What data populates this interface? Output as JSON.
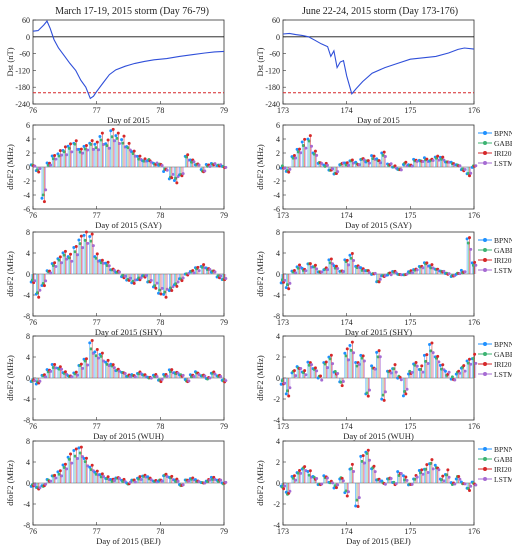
{
  "figure": {
    "col_titles": [
      "March 17-19, 2015 storm (Day 76-79)",
      "June 22-24, 2015 storm (Day 173-176)"
    ],
    "dst_ylabel": "Dst (nT)",
    "dfof2_ylabel": "dfoF2 (MHz)",
    "legend": [
      "BPNN",
      "GABP",
      "IRI2016",
      "LSTM"
    ],
    "colors": {
      "BPNN": "#1e90ff",
      "GABP": "#3cb371",
      "IRI2016": "#d62728",
      "LSTM": "#a66bd3",
      "dst_line": "#2f4fd9",
      "dst_threshold": "#d62728"
    }
  },
  "chart_data": [
    {
      "id": "dst_march",
      "type": "line",
      "title": "March 17-19, 2015 storm (Day 76-79)",
      "xlabel": "Day of 2015",
      "ylabel": "Dst (nT)",
      "xlim": [
        76,
        79
      ],
      "ylim": [
        -240,
        60
      ],
      "xticks": [
        76,
        77,
        78,
        79
      ],
      "yticks": [
        -240,
        -180,
        -120,
        -60,
        0,
        60
      ],
      "threshold": -200,
      "series": [
        {
          "values": [
            [
              76.0,
              20
            ],
            [
              76.08,
              22
            ],
            [
              76.17,
              42
            ],
            [
              76.22,
              56
            ],
            [
              76.27,
              30
            ],
            [
              76.33,
              -10
            ],
            [
              76.4,
              -40
            ],
            [
              76.5,
              -70
            ],
            [
              76.58,
              -95
            ],
            [
              76.67,
              -120
            ],
            [
              76.75,
              -155
            ],
            [
              76.83,
              -180
            ],
            [
              76.9,
              -220
            ],
            [
              76.95,
              -212
            ],
            [
              77.0,
              -195
            ],
            [
              77.1,
              -165
            ],
            [
              77.2,
              -135
            ],
            [
              77.3,
              -118
            ],
            [
              77.45,
              -105
            ],
            [
              77.6,
              -95
            ],
            [
              77.75,
              -88
            ],
            [
              77.9,
              -82
            ],
            [
              78.1,
              -78
            ],
            [
              78.3,
              -70
            ],
            [
              78.5,
              -64
            ],
            [
              78.7,
              -58
            ],
            [
              78.85,
              -54
            ],
            [
              79.0,
              -52
            ]
          ]
        }
      ]
    },
    {
      "id": "dst_june",
      "type": "line",
      "title": "June 22-24, 2015 storm (Day 173-176)",
      "xlabel": "Day of 2015",
      "ylabel": "Dst (nT)",
      "xlim": [
        173,
        176
      ],
      "ylim": [
        -240,
        60
      ],
      "xticks": [
        173,
        174,
        175,
        176
      ],
      "yticks": [
        -240,
        -180,
        -120,
        -60,
        0,
        60
      ],
      "threshold": -200,
      "series": [
        {
          "values": [
            [
              173.0,
              10
            ],
            [
              173.1,
              12
            ],
            [
              173.2,
              8
            ],
            [
              173.3,
              5
            ],
            [
              173.4,
              0
            ],
            [
              173.5,
              -12
            ],
            [
              173.6,
              -25
            ],
            [
              173.7,
              -35
            ],
            [
              173.75,
              -70
            ],
            [
              173.8,
              -50
            ],
            [
              173.85,
              -110
            ],
            [
              173.9,
              -90
            ],
            [
              173.95,
              -85
            ],
            [
              174.0,
              -140
            ],
            [
              174.05,
              -180
            ],
            [
              174.08,
              -204
            ],
            [
              174.15,
              -185
            ],
            [
              174.25,
              -160
            ],
            [
              174.4,
              -130
            ],
            [
              174.6,
              -110
            ],
            [
              174.8,
              -95
            ],
            [
              175.0,
              -80
            ],
            [
              175.2,
              -75
            ],
            [
              175.4,
              -70
            ],
            [
              175.6,
              -58
            ],
            [
              175.75,
              -45
            ],
            [
              175.85,
              -40
            ],
            [
              176.0,
              -44
            ]
          ]
        }
      ]
    },
    {
      "id": "say_march",
      "type": "scatter",
      "xlabel": "Day of 2015 (SAY)",
      "ylabel": "dfoF2 (MHz)",
      "xlim": [
        76,
        79
      ],
      "ylim": [
        -6,
        6
      ],
      "xticks": [
        76,
        77,
        78,
        79
      ],
      "yticks": [
        -6,
        -4,
        -2,
        0,
        2,
        4,
        6
      ],
      "legend_names": [
        "BPNN",
        "GABP",
        "IRI2016",
        "LSTM"
      ],
      "key_days": [
        76.0,
        76.08,
        76.17,
        76.25,
        76.33,
        76.42,
        76.5,
        76.58,
        76.67,
        76.75,
        76.83,
        76.92,
        77.0,
        77.08,
        77.17,
        77.25,
        77.33,
        77.42,
        77.5,
        77.58,
        77.67,
        77.75,
        77.83,
        77.92,
        78.0,
        78.08,
        78.17,
        78.25,
        78.33,
        78.42,
        78.5,
        78.58,
        78.67,
        78.75,
        78.83,
        78.92,
        79.0
      ],
      "key_values": [
        0.3,
        -0.5,
        -4.5,
        0.5,
        1.5,
        2.0,
        2.5,
        3.0,
        3.5,
        2.5,
        3.0,
        3.5,
        3.2,
        4.5,
        3.5,
        5.0,
        4.5,
        4.0,
        3.0,
        2.0,
        1.5,
        1.0,
        1.0,
        0.5,
        0.3,
        -0.5,
        -1.5,
        -2.0,
        -1.0,
        1.5,
        1.0,
        0.5,
        -0.5,
        0.3,
        0.5,
        0.2,
        0.0
      ]
    },
    {
      "id": "say_june",
      "type": "scatter",
      "xlabel": "Day of 2015 (SAY)",
      "ylabel": "dfoF2 (MHz)",
      "xlim": [
        173,
        176
      ],
      "ylim": [
        -6,
        6
      ],
      "xticks": [
        173,
        174,
        175,
        176
      ],
      "yticks": [
        -6,
        -4,
        -2,
        0,
        2,
        4,
        6
      ],
      "legend_names": [
        "BPNN",
        "GABP",
        "IRI2016",
        "LSTM"
      ],
      "key_days": [
        173.0,
        173.08,
        173.17,
        173.25,
        173.33,
        173.42,
        173.5,
        173.58,
        173.67,
        173.75,
        173.83,
        173.92,
        174.0,
        174.08,
        174.17,
        174.25,
        174.33,
        174.42,
        174.5,
        174.58,
        174.67,
        174.75,
        174.83,
        174.92,
        175.0,
        175.08,
        175.17,
        175.25,
        175.33,
        175.42,
        175.5,
        175.58,
        175.67,
        175.75,
        175.83,
        175.92,
        176.0
      ],
      "key_values": [
        0.0,
        -0.5,
        1.5,
        2.5,
        3.5,
        4.0,
        2.0,
        0.5,
        0.3,
        -0.5,
        -1.0,
        0.5,
        0.5,
        1.0,
        0.5,
        1.2,
        0.8,
        1.5,
        1.0,
        2.0,
        0.5,
        0.0,
        -0.3,
        0.5,
        0.3,
        1.0,
        0.8,
        1.2,
        1.0,
        1.5,
        1.2,
        0.8,
        0.5,
        0.3,
        -0.5,
        -1.0,
        0.0
      ]
    },
    {
      "id": "shy_march",
      "type": "scatter",
      "xlabel": "Day of 2015 (SHY)",
      "ylabel": "dfoF2 (MHz)",
      "xlim": [
        76,
        79
      ],
      "ylim": [
        -8,
        8
      ],
      "xticks": [
        76,
        77,
        78,
        79
      ],
      "yticks": [
        -8,
        -4,
        0,
        4,
        8
      ],
      "legend_names": [
        "BPNN",
        "GABP",
        "IRI2016",
        "LSTM"
      ],
      "key_days": [
        76.0,
        76.08,
        76.17,
        76.25,
        76.33,
        76.42,
        76.5,
        76.58,
        76.67,
        76.75,
        76.83,
        76.92,
        77.0,
        77.08,
        77.17,
        77.25,
        77.33,
        77.42,
        77.5,
        77.58,
        77.67,
        77.75,
        77.83,
        77.92,
        78.0,
        78.08,
        78.17,
        78.25,
        78.33,
        78.42,
        78.5,
        78.58,
        78.67,
        78.75,
        78.83,
        78.92,
        79.0
      ],
      "key_values": [
        -1.5,
        -4.0,
        -2.0,
        0.5,
        2.0,
        3.0,
        4.0,
        3.5,
        5.0,
        6.5,
        7.5,
        7.0,
        3.5,
        2.5,
        2.0,
        1.0,
        0.5,
        -0.5,
        -1.0,
        -1.5,
        -1.0,
        -0.5,
        -1.5,
        -2.5,
        -3.5,
        -4.0,
        -3.0,
        -2.0,
        -1.0,
        0.0,
        0.5,
        1.0,
        1.5,
        1.0,
        0.5,
        -0.5,
        -1.0
      ]
    },
    {
      "id": "shy_june",
      "type": "scatter",
      "xlabel": "Day of 2015 (SHY)",
      "ylabel": "dfoF2 (MHz)",
      "xlim": [
        173,
        176
      ],
      "ylim": [
        -8,
        8
      ],
      "xticks": [
        173,
        174,
        175,
        176
      ],
      "yticks": [
        -8,
        -4,
        0,
        4,
        8
      ],
      "legend_names": [
        "BPNN",
        "GABP",
        "IRI2016",
        "LSTM"
      ],
      "key_days": [
        173.0,
        173.08,
        173.17,
        173.25,
        173.33,
        173.42,
        173.5,
        173.58,
        173.67,
        173.75,
        173.83,
        173.92,
        174.0,
        174.08,
        174.17,
        174.25,
        174.33,
        174.42,
        174.5,
        174.58,
        174.67,
        174.75,
        174.83,
        174.92,
        175.0,
        175.08,
        175.17,
        175.25,
        175.33,
        175.42,
        175.5,
        175.58,
        175.67,
        175.75,
        175.83,
        175.92,
        176.0
      ],
      "key_values": [
        -1.5,
        -2.5,
        0.5,
        1.5,
        1.0,
        2.0,
        1.5,
        0.5,
        1.0,
        2.5,
        1.5,
        0.5,
        2.5,
        3.5,
        1.5,
        1.0,
        0.5,
        0.0,
        -1.5,
        -0.5,
        0.0,
        0.5,
        0.0,
        0.0,
        0.5,
        1.0,
        1.5,
        2.0,
        1.5,
        1.0,
        0.5,
        0.0,
        -0.5,
        0.0,
        0.5,
        6.5,
        2.0
      ]
    },
    {
      "id": "wuh_march",
      "type": "scatter",
      "xlabel": "Day of 2015 (WUH)",
      "ylabel": "dfoF2 (MHz)",
      "xlim": [
        76,
        79
      ],
      "ylim": [
        -8,
        8
      ],
      "xticks": [
        76,
        77,
        78,
        79
      ],
      "yticks": [
        -8,
        -4,
        0,
        4,
        8
      ],
      "legend_names": [
        "BPNN",
        "GABP",
        "IRI2016",
        "LSTM"
      ],
      "key_days": [
        76.0,
        76.08,
        76.17,
        76.25,
        76.33,
        76.42,
        76.5,
        76.58,
        76.67,
        76.75,
        76.83,
        76.92,
        77.0,
        77.08,
        77.17,
        77.25,
        77.33,
        77.42,
        77.5,
        77.58,
        77.67,
        77.75,
        77.83,
        77.92,
        78.0,
        78.08,
        78.17,
        78.25,
        78.33,
        78.42,
        78.5,
        78.58,
        78.67,
        78.75,
        78.83,
        78.92,
        79.0
      ],
      "key_values": [
        -0.5,
        -1.0,
        0.5,
        1.5,
        2.5,
        2.0,
        1.0,
        0.5,
        1.0,
        2.5,
        3.5,
        6.5,
        5.0,
        4.5,
        3.0,
        2.5,
        1.5,
        1.0,
        0.5,
        0.5,
        1.0,
        0.5,
        0.0,
        0.5,
        -0.5,
        0.5,
        1.5,
        1.0,
        0.5,
        -0.5,
        0.5,
        1.0,
        0.5,
        0.0,
        1.0,
        0.5,
        -0.5
      ]
    },
    {
      "id": "wuh_june",
      "type": "scatter",
      "xlabel": "Day of 2015 (WUH)",
      "ylabel": "dfoF2 (MHz)",
      "xlim": [
        173,
        176
      ],
      "ylim": [
        -4,
        4
      ],
      "xticks": [
        173,
        174,
        175,
        176
      ],
      "yticks": [
        -4,
        -2,
        0,
        2,
        4
      ],
      "legend_names": [
        "BPNN",
        "GABP",
        "IRI2016",
        "LSTM"
      ],
      "key_days": [
        173.0,
        173.08,
        173.17,
        173.25,
        173.33,
        173.42,
        173.5,
        173.58,
        173.67,
        173.75,
        173.83,
        173.92,
        174.0,
        174.08,
        174.17,
        174.25,
        174.33,
        174.42,
        174.5,
        174.58,
        174.67,
        174.75,
        174.83,
        174.92,
        175.0,
        175.08,
        175.17,
        175.25,
        175.33,
        175.42,
        175.5,
        175.58,
        175.67,
        175.75,
        175.83,
        175.92,
        176.0
      ],
      "key_values": [
        -0.5,
        -1.5,
        0.5,
        1.0,
        0.5,
        1.5,
        1.0,
        0.0,
        1.5,
        2.0,
        0.5,
        -0.5,
        2.5,
        3.0,
        1.5,
        2.0,
        -1.5,
        1.0,
        2.5,
        -2.0,
        0.5,
        1.0,
        0.0,
        -1.5,
        0.5,
        1.5,
        1.0,
        2.0,
        3.0,
        2.0,
        1.0,
        0.5,
        0.0,
        0.5,
        1.0,
        1.5,
        2.0
      ]
    },
    {
      "id": "bej_march",
      "type": "scatter",
      "xlabel": "Day of 2015 (BEJ)",
      "ylabel": "dfoF2 (MHz)",
      "xlim": [
        76,
        79
      ],
      "ylim": [
        -8,
        8
      ],
      "xticks": [
        76,
        77,
        78,
        79
      ],
      "yticks": [
        -8,
        -4,
        0,
        4,
        8
      ],
      "legend_names": [
        "BPNN",
        "GABP",
        "IRI2016",
        "LSTM"
      ],
      "key_days": [
        76.0,
        76.08,
        76.17,
        76.25,
        76.33,
        76.42,
        76.5,
        76.58,
        76.67,
        76.75,
        76.83,
        76.92,
        77.0,
        77.08,
        77.17,
        77.25,
        77.33,
        77.42,
        77.5,
        77.58,
        77.67,
        77.75,
        77.83,
        77.92,
        78.0,
        78.08,
        78.17,
        78.25,
        78.33,
        78.42,
        78.5,
        78.58,
        78.67,
        78.75,
        78.83,
        78.92,
        79.0
      ],
      "key_values": [
        -0.5,
        -1.0,
        -0.5,
        0.5,
        1.5,
        2.0,
        3.5,
        5.0,
        6.0,
        6.5,
        4.5,
        3.0,
        2.0,
        1.5,
        1.0,
        0.5,
        1.0,
        0.5,
        0.0,
        0.5,
        1.0,
        1.5,
        1.0,
        0.5,
        0.5,
        1.5,
        1.0,
        0.5,
        -0.5,
        0.5,
        1.0,
        0.5,
        0.0,
        0.5,
        1.0,
        0.5,
        0.0
      ]
    },
    {
      "id": "bej_june",
      "type": "scatter",
      "xlabel": "Day of 2015 (BEJ)",
      "ylabel": "dfoF2 (MHz)",
      "xlim": [
        173,
        176
      ],
      "ylim": [
        -4,
        4
      ],
      "xticks": [
        173,
        174,
        175,
        176
      ],
      "yticks": [
        -4,
        -2,
        0,
        2,
        4
      ],
      "legend_names": [
        "BPNN",
        "GABP",
        "IRI2016",
        "LSTM"
      ],
      "key_days": [
        173.0,
        173.08,
        173.17,
        173.25,
        173.33,
        173.42,
        173.5,
        173.58,
        173.67,
        173.75,
        173.83,
        173.92,
        174.0,
        174.08,
        174.17,
        174.25,
        174.33,
        174.42,
        174.5,
        174.58,
        174.67,
        174.75,
        174.83,
        174.92,
        175.0,
        175.08,
        175.17,
        175.25,
        175.33,
        175.42,
        175.5,
        175.58,
        175.67,
        175.75,
        175.83,
        175.92,
        176.0
      ],
      "key_values": [
        -0.5,
        -1.0,
        0.5,
        1.0,
        1.5,
        1.0,
        0.5,
        0.0,
        0.5,
        0.0,
        -0.5,
        0.5,
        -1.0,
        1.5,
        -2.0,
        2.5,
        3.0,
        1.5,
        0.5,
        0.0,
        0.5,
        0.0,
        1.0,
        0.5,
        0.0,
        0.5,
        1.0,
        1.5,
        2.0,
        1.5,
        0.5,
        1.0,
        0.0,
        0.5,
        0.0,
        -0.5,
        0.0
      ]
    }
  ]
}
